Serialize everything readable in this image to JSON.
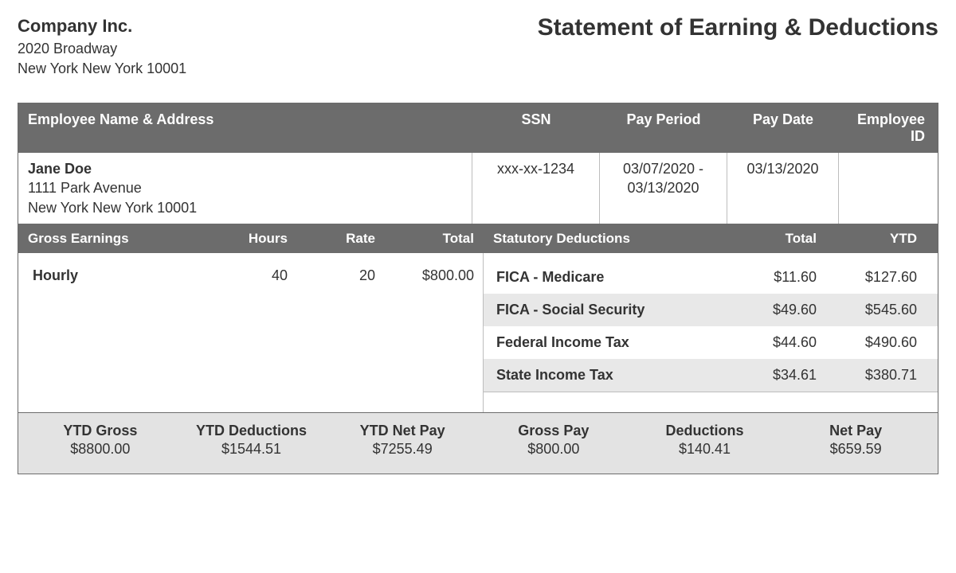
{
  "company": {
    "name": "Company Inc.",
    "street": "2020 Broadway",
    "city_line": "New York New York 10001"
  },
  "document_title": "Statement of Earning & Deductions",
  "employee_header": {
    "name_address": "Employee Name & Address",
    "ssn": "SSN",
    "pay_period": "Pay Period",
    "pay_date": "Pay Date",
    "employee_id": "Employee ID"
  },
  "employee": {
    "name": "Jane Doe",
    "street": "1111 Park Avenue",
    "city_line": "New York New York 10001",
    "ssn": "xxx-xx-1234",
    "pay_period": "03/07/2020 - 03/13/2020",
    "pay_date": "03/13/2020",
    "employee_id": ""
  },
  "earnings_header": {
    "gross_earnings": "Gross Earnings",
    "hours": "Hours",
    "rate": "Rate",
    "total": "Total",
    "statutory_deductions": "Statutory Deductions",
    "d_total": "Total",
    "ytd": "YTD"
  },
  "earnings": [
    {
      "label": "Hourly",
      "hours": "40",
      "rate": "20",
      "total": "$800.00"
    }
  ],
  "deductions": [
    {
      "label": "FICA - Medicare",
      "total": "$11.60",
      "ytd": "$127.60"
    },
    {
      "label": "FICA - Social Security",
      "total": "$49.60",
      "ytd": "$545.60"
    },
    {
      "label": "Federal Income Tax",
      "total": "$44.60",
      "ytd": "$490.60"
    },
    {
      "label": "State Income Tax",
      "total": "$34.61",
      "ytd": "$380.71"
    }
  ],
  "summary": {
    "ytd_gross": {
      "label": "YTD Gross",
      "value": "$8800.00"
    },
    "ytd_deductions": {
      "label": "YTD Deductions",
      "value": "$1544.51"
    },
    "ytd_net_pay": {
      "label": "YTD Net Pay",
      "value": "$7255.49"
    },
    "gross_pay": {
      "label": "Gross Pay",
      "value": "$800.00"
    },
    "deductions": {
      "label": "Deductions",
      "value": "$140.41"
    },
    "net_pay": {
      "label": "Net Pay",
      "value": "$659.59"
    }
  },
  "colors": {
    "header_bg": "#6c6c6c",
    "header_text": "#ffffff",
    "border": "#6c6c6c",
    "row_alt_bg": "#e8e8e8",
    "summary_bg": "#e3e3e3",
    "text": "#333333",
    "page_bg": "#ffffff"
  }
}
